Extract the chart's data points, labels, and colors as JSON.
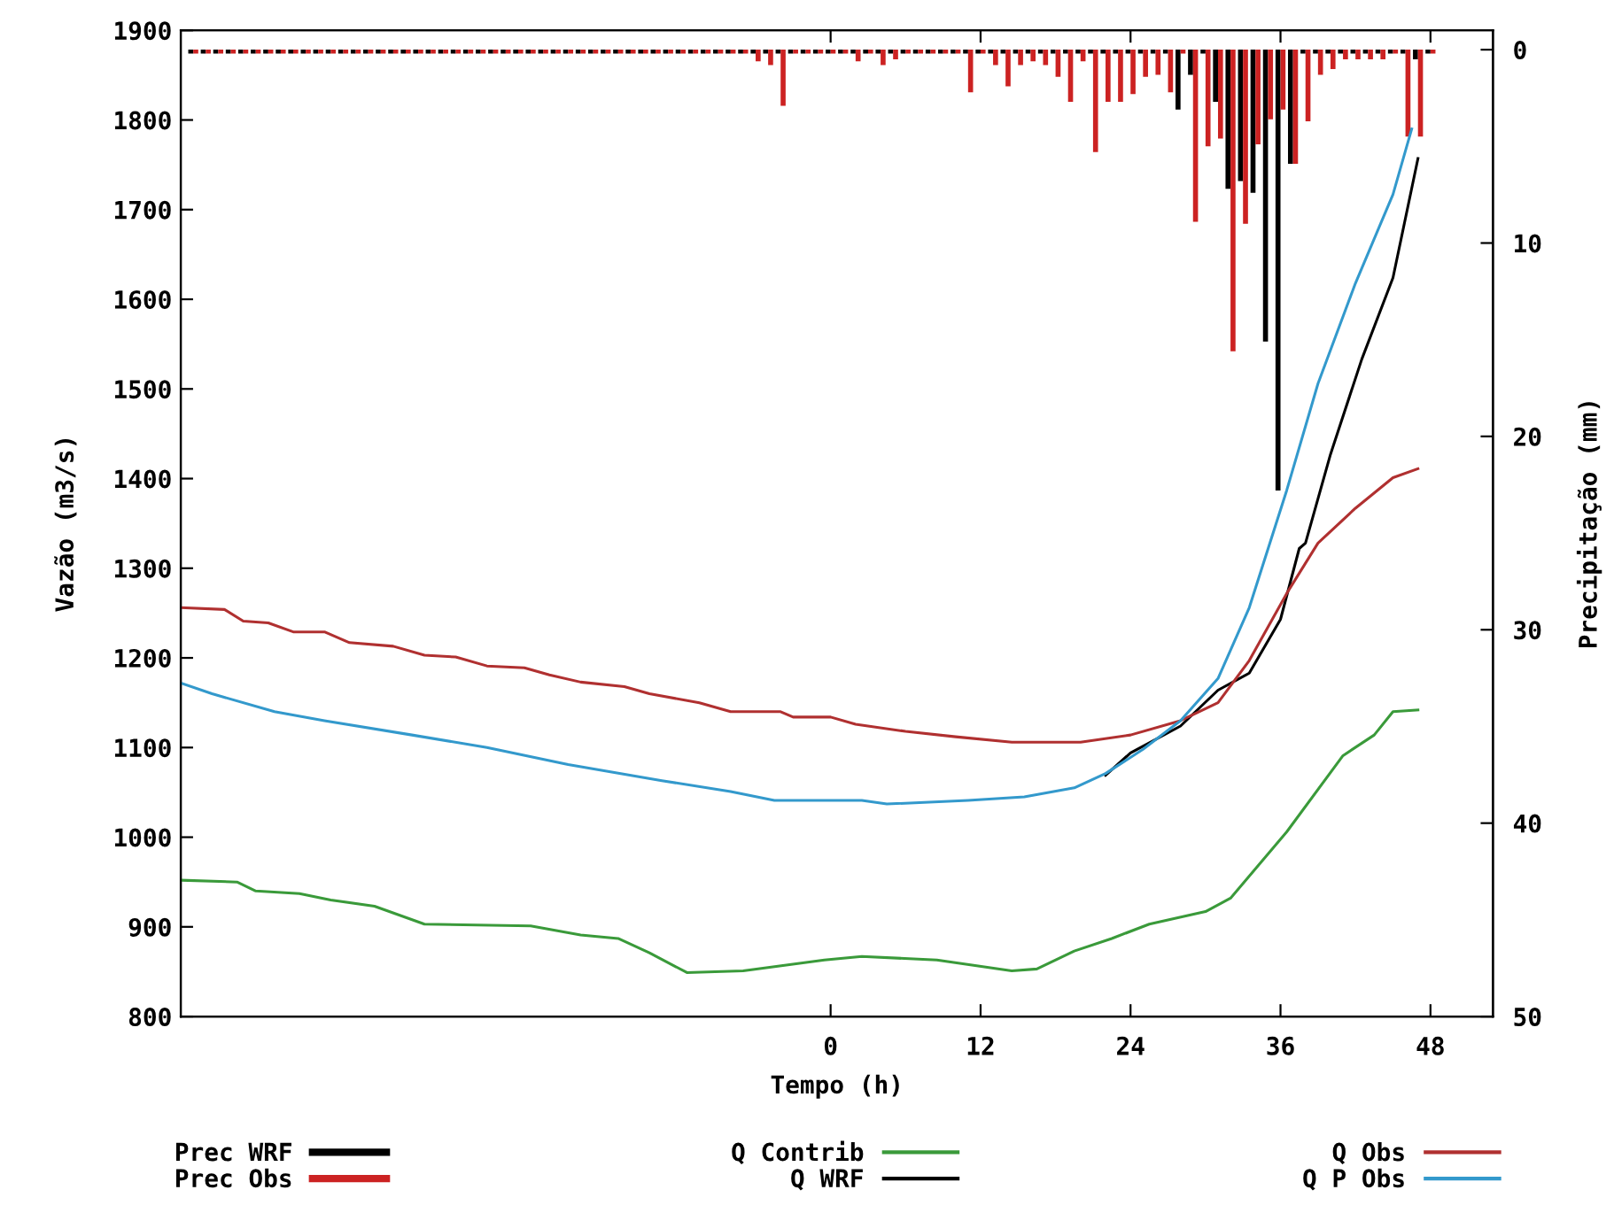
{
  "chart_data": {
    "type": "line",
    "xlabel": "Tempo (h)",
    "ylabel": "Vazão (m3/s)",
    "y2label": "Precipitação (mm)",
    "xlim": [
      -52,
      53
    ],
    "xticks": [
      0,
      12,
      24,
      36,
      48
    ],
    "ylim": [
      800,
      1900
    ],
    "yticks": [
      800,
      900,
      1000,
      1100,
      1200,
      1300,
      1400,
      1500,
      1600,
      1700,
      1800,
      1900
    ],
    "y2lim": [
      50,
      -1
    ],
    "y2ticks": [
      0,
      10,
      20,
      30,
      40,
      50
    ],
    "grid": false,
    "legend": "bottom",
    "marker": "none",
    "line_style": "solid",
    "series": [
      {
        "name": "Prec WRF",
        "type": "bar",
        "axis": "y2",
        "color": "#000000",
        "x": [
          -51,
          -50,
          -49,
          -48,
          -47,
          -46,
          -45,
          -44,
          -43,
          -42,
          -41,
          -40,
          -39,
          -38,
          -37,
          -36,
          -35,
          -34,
          -33,
          -32,
          -31,
          -30,
          -29,
          -28,
          -27,
          -26,
          -25,
          -24,
          -23,
          -22,
          -21,
          -20,
          -19,
          -18,
          -17,
          -16,
          -15,
          -14,
          -13,
          -12,
          -11,
          -10,
          -9,
          -8,
          -7,
          -6,
          -5,
          -4,
          -3,
          -2,
          -1,
          0,
          1,
          2,
          3,
          4,
          5,
          6,
          7,
          8,
          9,
          10,
          11,
          12,
          13,
          14,
          15,
          16,
          17,
          18,
          19,
          20,
          21,
          22,
          23,
          24,
          25,
          26,
          27,
          28,
          29,
          30,
          31,
          32,
          33,
          34,
          35,
          36,
          37,
          38,
          39,
          40,
          41,
          42,
          43,
          44,
          45,
          46,
          47,
          48
        ],
        "values": [
          0.2,
          0.2,
          0.2,
          0.2,
          0.2,
          0.2,
          0.2,
          0.2,
          0.2,
          0.2,
          0.2,
          0.2,
          0.2,
          0.2,
          0.2,
          0.2,
          0.2,
          0.2,
          0.2,
          0.2,
          0.2,
          0.2,
          0.2,
          0.2,
          0.2,
          0.2,
          0.2,
          0.2,
          0.2,
          0.2,
          0.2,
          0.2,
          0.2,
          0.2,
          0.2,
          0.2,
          0.2,
          0.2,
          0.2,
          0.2,
          0.2,
          0.2,
          0.2,
          0.2,
          0.2,
          0.2,
          0.2,
          0.2,
          0.2,
          0.2,
          0.2,
          0.2,
          0.2,
          0.2,
          0.2,
          0.2,
          0.2,
          0.2,
          0.2,
          0.2,
          0.2,
          0.2,
          0.2,
          0.2,
          0.2,
          0.2,
          0.2,
          0.2,
          0.2,
          0.2,
          0.2,
          0.2,
          0.2,
          0.2,
          0.2,
          0.2,
          0.2,
          0.2,
          0.2,
          3.1,
          1.3,
          0.2,
          2.7,
          7.2,
          6.8,
          7.4,
          15.1,
          22.8,
          5.9,
          0.2,
          0.2,
          0.2,
          0.2,
          0.2,
          0.2,
          0.2,
          0.2,
          0.2,
          0.5,
          0.2
        ]
      },
      {
        "name": "Prec Obs",
        "type": "bar",
        "axis": "y2",
        "color": "#cc2222",
        "x": [
          -51,
          -50,
          -49,
          -48,
          -47,
          -46,
          -45,
          -44,
          -43,
          -42,
          -41,
          -40,
          -39,
          -38,
          -37,
          -36,
          -35,
          -34,
          -33,
          -32,
          -31,
          -30,
          -29,
          -28,
          -27,
          -26,
          -25,
          -24,
          -23,
          -22,
          -21,
          -20,
          -19,
          -18,
          -17,
          -16,
          -15,
          -14,
          -13,
          -12,
          -11,
          -10,
          -9,
          -8,
          -7,
          -6,
          -5,
          -4,
          -3,
          -2,
          -1,
          0,
          1,
          2,
          3,
          4,
          5,
          6,
          7,
          8,
          9,
          10,
          11,
          12,
          13,
          14,
          15,
          16,
          17,
          18,
          19,
          20,
          21,
          22,
          23,
          24,
          25,
          26,
          27,
          28,
          29,
          30,
          31,
          32,
          33,
          34,
          35,
          36,
          37,
          38,
          39,
          40,
          41,
          42,
          43,
          44,
          45,
          46,
          47,
          48
        ],
        "values": [
          0.2,
          0.2,
          0.2,
          0.2,
          0.2,
          0.2,
          0.2,
          0.2,
          0.2,
          0.2,
          0.2,
          0.2,
          0.2,
          0.2,
          0.2,
          0.2,
          0.2,
          0.2,
          0.2,
          0.2,
          0.2,
          0.2,
          0.2,
          0.2,
          0.2,
          0.2,
          0.2,
          0.2,
          0.2,
          0.2,
          0.2,
          0.2,
          0.2,
          0.2,
          0.2,
          0.2,
          0.2,
          0.2,
          0.2,
          0.2,
          0.2,
          0.2,
          0.2,
          0.2,
          0.2,
          0.6,
          0.8,
          2.9,
          0.2,
          0.2,
          0.2,
          0.2,
          0.2,
          0.6,
          0.2,
          0.8,
          0.5,
          0.2,
          0.2,
          0.2,
          0.2,
          0.2,
          2.2,
          0.2,
          0.8,
          1.9,
          0.8,
          0.6,
          0.8,
          1.4,
          2.7,
          0.6,
          5.3,
          2.7,
          2.7,
          2.3,
          1.4,
          1.3,
          2.2,
          0.2,
          8.9,
          5.0,
          4.6,
          15.6,
          9.0,
          4.9,
          3.6,
          3.1,
          5.9,
          3.7,
          1.3,
          1.0,
          0.5,
          0.5,
          0.5,
          0.5,
          0.2,
          4.5,
          4.5,
          0.2
        ]
      },
      {
        "name": "Q Contrib",
        "color": "#3a9a3a",
        "x": [
          -52,
          -47.5,
          -46,
          -42.5,
          -40,
          -36.5,
          -32.5,
          -24,
          -20,
          -17,
          -14.5,
          -11.5,
          -7,
          -0.5,
          2.5,
          8.5,
          14.5,
          16.5,
          19.5,
          22.5,
          25.5,
          30,
          32,
          36.5,
          41,
          43.5,
          45,
          47
        ],
        "values": [
          952,
          950,
          940,
          937,
          930,
          923,
          903,
          901,
          891,
          887,
          871,
          849,
          851,
          863,
          867,
          863,
          851,
          853,
          873,
          887,
          903,
          917,
          932,
          1006,
          1091,
          1114,
          1140,
          1142
        ]
      },
      {
        "name": "Q WRF",
        "color": "#000000",
        "x": [
          22,
          24,
          28,
          31,
          33.5,
          36,
          37.5,
          38,
          40,
          42.5,
          45,
          47
        ],
        "values": [
          1069,
          1094,
          1124,
          1164,
          1183,
          1243,
          1322,
          1328,
          1427,
          1533,
          1624,
          1757
        ]
      },
      {
        "name": "Q Obs",
        "color": "#b03030",
        "x": [
          -52,
          -48.5,
          -47,
          -45,
          -43,
          -40.5,
          -38.5,
          -35,
          -32.5,
          -30,
          -27.5,
          -24.5,
          -22.5,
          -20,
          -16.5,
          -14.5,
          -10.5,
          -8,
          -4,
          -3,
          0,
          2,
          6,
          10,
          14.5,
          20,
          24,
          28,
          31,
          33.5,
          36.5,
          39,
          42,
          45,
          47
        ],
        "values": [
          1256,
          1254,
          1241,
          1239,
          1229,
          1229,
          1217,
          1213,
          1203,
          1201,
          1191,
          1189,
          1181,
          1173,
          1168,
          1160,
          1150,
          1140,
          1140,
          1134,
          1134,
          1126,
          1118,
          1112,
          1106,
          1106,
          1114,
          1130,
          1150,
          1197,
          1272,
          1328,
          1367,
          1401,
          1411
        ]
      },
      {
        "name": "Q P Obs",
        "color": "#3399cc",
        "x": [
          -52,
          -49.5,
          -44.5,
          -40.5,
          -33.5,
          -27.5,
          -21,
          -13.5,
          -8,
          -4.5,
          2.5,
          4.5,
          11,
          15.5,
          19.5,
          22,
          25,
          28,
          31,
          33.5,
          36.5,
          39,
          42,
          45,
          46.5
        ],
        "values": [
          1172,
          1160,
          1140,
          1130,
          1114,
          1100,
          1081,
          1063,
          1051,
          1041,
          1041,
          1037,
          1041,
          1045,
          1055,
          1071,
          1098,
          1130,
          1177,
          1256,
          1387,
          1506,
          1618,
          1717,
          1790
        ]
      }
    ]
  }
}
